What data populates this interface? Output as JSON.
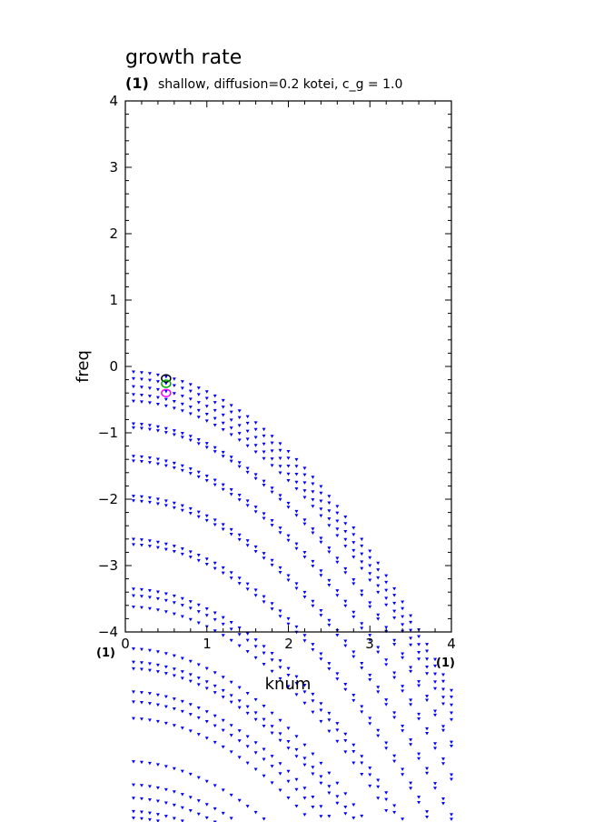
{
  "chart_data": {
    "type": "scatter",
    "title": "growth rate",
    "subtitle_prefix": "(1)",
    "subtitle": "shallow, diffusion=0.2 kotei, c_g = 1.0",
    "xlabel": "knum",
    "ylabel": "freq",
    "x_unit_left": "(1)",
    "x_unit_right": "(1)",
    "xlim": [
      0,
      4
    ],
    "ylim": [
      -4,
      4
    ],
    "x_ticks": [
      "0",
      "1",
      "2",
      "3",
      "4"
    ],
    "y_ticks": [
      "4",
      "3",
      "2",
      "1",
      "0",
      "−1",
      "−2",
      "−3",
      "−4"
    ],
    "colors": {
      "points": "#0000ff",
      "marker_a": "#000000",
      "marker_b": "#00aa00",
      "marker_c": "#ff00ff"
    },
    "curve_family": {
      "description_note": "",
      "x_start": 0.1,
      "x_step": 0.1,
      "x_end": 4.0,
      "y0_values": [
        -0.08,
        -0.18,
        -0.3,
        -0.42,
        -0.52,
        -0.86,
        -0.92,
        -1.35,
        -1.42,
        -1.95,
        -2.02,
        -2.6,
        -2.68,
        -3.35,
        -3.45,
        -3.62,
        -4.25,
        -4.45,
        -4.55,
        -4.9,
        -5.05,
        -5.3,
        -5.95,
        -6.3,
        -6.5,
        -6.7,
        -6.8
      ],
      "curvature": 0.3
    },
    "markers": [
      {
        "x": 0.5,
        "y": -0.18,
        "color": "#000000"
      },
      {
        "x": 0.5,
        "y": -0.26,
        "color": "#00aa00"
      },
      {
        "x": 0.5,
        "y": -0.4,
        "color": "#ff00ff"
      }
    ]
  }
}
